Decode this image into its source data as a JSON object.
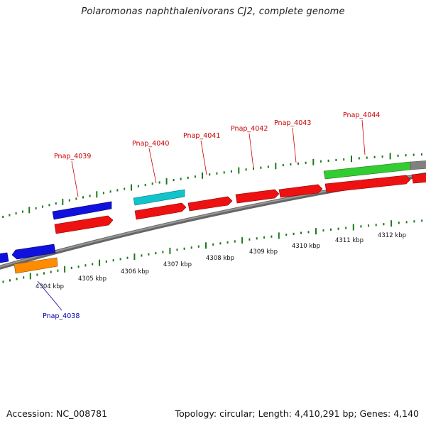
{
  "title": "Polaromonas naphthalenivorans CJ2, complete genome",
  "footer": {
    "accession": "Accession: NC_008781",
    "topology": "Topology: circular; Length: 4,410,291 bp; Genes: 4,140"
  },
  "colors": {
    "backbone": "#808080",
    "tick": "#1c7a1c",
    "label_red": "#cc0000",
    "label_blue": "#0000aa",
    "red": "#ee1111",
    "blue": "#1111dd",
    "cyan": "#11c4cc",
    "orange": "#ff8c00",
    "green": "#33cc33",
    "gray": "#808080"
  },
  "scale_labels": [
    "4304 kbp",
    "4305 kbp",
    "4306 kbp",
    "4307 kbp",
    "4308 kbp",
    "4309 kbp",
    "4310 kbp",
    "4311 kbp",
    "4312 kbp"
  ],
  "gene_labels": [
    {
      "text": "Pnap_4038",
      "color": "label_blue"
    },
    {
      "text": "Pnap_4039",
      "color": "label_red"
    },
    {
      "text": "Pnap_4040",
      "color": "label_red"
    },
    {
      "text": "Pnap_4041",
      "color": "label_red"
    },
    {
      "text": "Pnap_4042",
      "color": "label_red"
    },
    {
      "text": "Pnap_4043",
      "color": "label_red"
    },
    {
      "text": "Pnap_4044",
      "color": "label_red"
    }
  ]
}
